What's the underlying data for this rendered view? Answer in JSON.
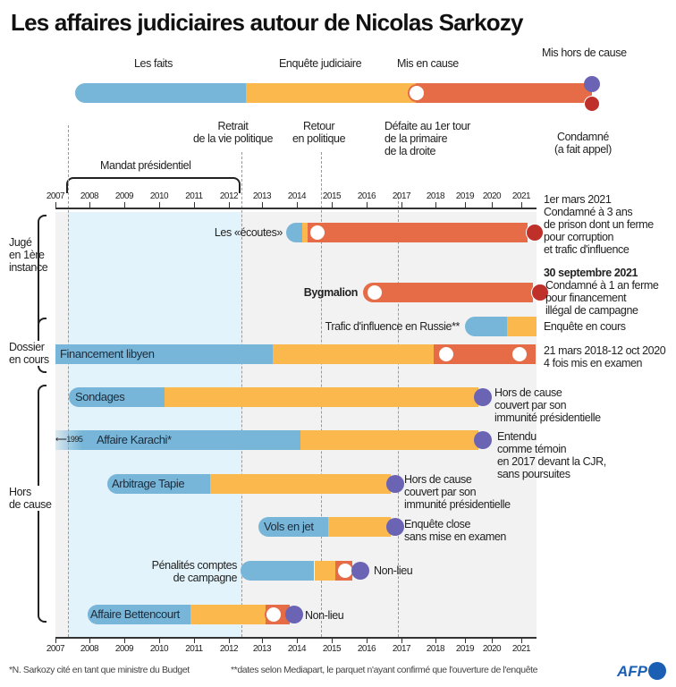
{
  "title": "Les affaires judiciaires autour de Nicolas Sarkozy",
  "colors": {
    "faits": "#77b6d8",
    "enquete": "#fbb84d",
    "mis_en_cause": "#e56c47",
    "hors_de_cause": "#6b64b4",
    "condamne": "#c0302a",
    "mandat": "#e2f3fb",
    "background": "#f2f2f2"
  },
  "legend": {
    "faits": "Les faits",
    "enquete": "Enquête judiciaire",
    "mis_en_cause": "Mis en cause",
    "hors_de_cause": "Mis hors de cause",
    "condamne": "Condamné\n(a fait appel)"
  },
  "events": {
    "retrait": "Retrait\nde la vie politique",
    "retour": "Retour\nen politique",
    "defaite": "Défaite au 1er tour\nde la primaire\nde la droite",
    "mandat": "Mandat présidentiel"
  },
  "years": [
    "2007",
    "2008",
    "2009",
    "2010",
    "2011",
    "2012",
    "2013",
    "2014",
    "2015",
    "2016",
    "2017",
    "2018",
    "2019",
    "2020",
    "2021"
  ],
  "groups": {
    "juge": "Jugé\nen 1ère\ninstance",
    "dossier": "Dossier\nen cours",
    "hors": "Hors\nde cause"
  },
  "cases": [
    {
      "label": "Les «écoutes»",
      "faits": [
        2013.7,
        2014.15
      ],
      "enquete": [
        2014.15,
        2014.3
      ],
      "mis_en_cause": [
        2014.3,
        2021.2
      ],
      "open": [
        2014.45
      ],
      "condamne": 2021.2,
      "note_date": "1er mars 2021",
      "note": "Condamné à 3 ans\nde prison dont un ferme\npour corruption\net trafic d'influence"
    },
    {
      "label": "Bygmalion",
      "mis_en_cause": [
        2015.9,
        2021.4
      ],
      "open": [
        2016.1
      ],
      "condamne": 2021.4,
      "note_date": "30 septembre 2021",
      "note": "Condamné à 1 an ferme\npour financement\nillégal de campagne"
    },
    {
      "label": "Trafic d'influence en Russie**",
      "faits": [
        2019,
        2020.5
      ],
      "enquete": [
        2020.5,
        2021.5
      ],
      "note": "Enquête en cours"
    },
    {
      "label": "Financement libyen",
      "faits": [
        2007,
        2013.3
      ],
      "enquete": [
        2013.3,
        2017.95
      ],
      "mis_en_cause": [
        2017.95,
        2021.5
      ],
      "open": [
        2018.2,
        2020.8
      ],
      "note": "21 mars 2018-12 oct 2020\n4 fois mis en examen"
    },
    {
      "label": "Sondages",
      "faits": [
        2007.4,
        2010.15
      ],
      "enquete": [
        2010.15,
        2019.5
      ],
      "hors": 2019.5,
      "note": "Hors de cause\ncouvert par son\nimmunité présidentielle"
    },
    {
      "label": "Affaire Karachi*",
      "start_note": "1995",
      "faits": [
        2007,
        2014.1
      ],
      "enquete": [
        2014.1,
        2019.5
      ],
      "hors": 2019.5,
      "note": "Entendu\ncomme témoin\nen 2017 devant la CJR,\nsans poursuites"
    },
    {
      "label": "Arbitrage Tapie",
      "faits": [
        2008.5,
        2011.45
      ],
      "enquete": [
        2011.45,
        2016.7
      ],
      "hors": 2016.7,
      "note": "Hors de cause\ncouvert par son\nimmunité présidentielle"
    },
    {
      "label": "Vols en jet",
      "faits": [
        2012.9,
        2014.9
      ],
      "enquete": [
        2014.9,
        2016.7
      ],
      "hors": 2016.7,
      "note": "Enquête close\nsans mise en examen"
    },
    {
      "label": "Pénalités comptes\nde campagne",
      "faits": [
        2012.35,
        2014.5
      ],
      "enquete": [
        2014.5,
        2015.1
      ],
      "mis_en_cause": [
        2015.1,
        2015.6
      ],
      "open": [
        2015.25
      ],
      "hors": 2015.7,
      "note": "Non-lieu"
    },
    {
      "label": "Affaire Bettencourt",
      "faits": [
        2007.95,
        2010.9
      ],
      "enquete": [
        2010.9,
        2013.1
      ],
      "mis_en_cause": [
        2013.1,
        2013.8
      ],
      "open": [
        2013.2
      ],
      "hors": 2013.8,
      "note": "Non-lieu"
    }
  ],
  "footnotes": {
    "a": "*N. Sarkozy cité en tant que ministre du Budget",
    "b": "**dates selon Mediapart, le parquet n'ayant confirmé que l'ouverture de l'enquête"
  },
  "logo": "AFP"
}
